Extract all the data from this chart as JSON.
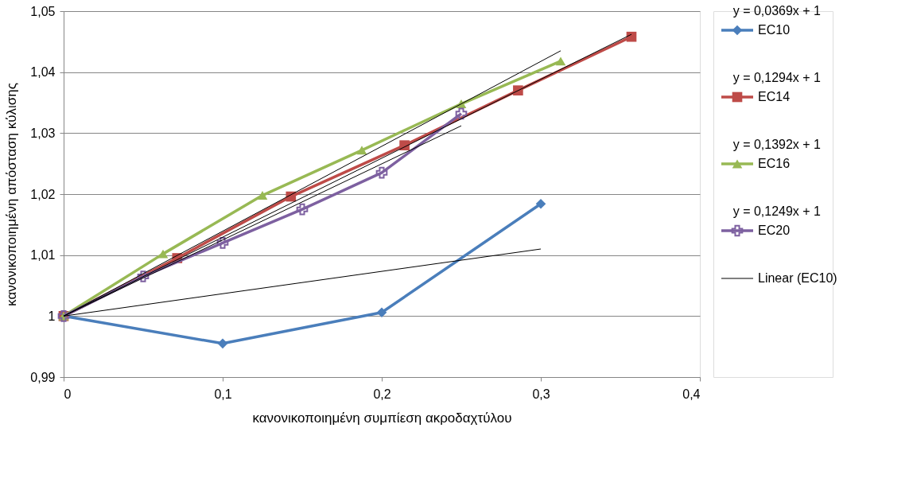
{
  "chart_data": {
    "type": "line",
    "xlabel": "κανονικοποιημένη συμπίεση ακροδαχτύλου",
    "ylabel": "κανονικοποιημένη απόσταση κύλισης",
    "xlim": [
      0,
      0.4
    ],
    "xticks": [
      0,
      {
        "value": 0.1,
        "label": "0,1"
      },
      {
        "value": 0.2,
        "label": "0,2"
      },
      {
        "value": 0.3,
        "label": "0,3"
      },
      {
        "value": 0.4,
        "label": "0,4"
      }
    ],
    "ylim": [
      0.99,
      1.05
    ],
    "yticks": [
      {
        "value": 0.99,
        "label": "0,99"
      },
      1,
      {
        "value": 1.01,
        "label": "1,01"
      },
      {
        "value": 1.02,
        "label": "1,02"
      },
      {
        "value": 1.03,
        "label": "1,03"
      },
      {
        "value": 1.04,
        "label": "1,04"
      },
      {
        "value": 1.05,
        "label": "1,05"
      }
    ],
    "grid": "y",
    "legend": "right",
    "annotations": [
      "y = 0,0369x + 1",
      "y = 0,1294x + 1",
      "y = 0,1392x + 1",
      "y = 0,1249x + 1"
    ],
    "series": [
      {
        "name": "EC10",
        "color": "#4a7ebb",
        "marker": "diamond",
        "x": [
          0,
          0.1,
          0.2,
          0.3
        ],
        "values": [
          1,
          0.9955,
          1.0006,
          1.0184
        ]
      },
      {
        "name": "EC14",
        "color": "#be4b48",
        "marker": "square",
        "x": [
          0,
          0.0714,
          0.1429,
          0.2143,
          0.2857,
          0.357
        ],
        "values": [
          1,
          1.0095,
          1.0196,
          1.028,
          1.037,
          1.0458
        ]
      },
      {
        "name": "EC16",
        "color": "#98b954",
        "marker": "triangle",
        "x": [
          0,
          0.0625,
          0.125,
          0.1875,
          0.25,
          0.3125
        ],
        "values": [
          1,
          1.0102,
          1.0198,
          1.0272,
          1.0348,
          1.0418
        ]
      },
      {
        "name": "EC20",
        "color": "#7d60a0",
        "marker": "cross",
        "x": [
          0,
          0.05,
          0.1,
          0.15,
          0.2,
          0.25
        ],
        "values": [
          1,
          1.0065,
          1.012,
          1.0175,
          1.0235,
          1.0332
        ]
      },
      {
        "name": "Linear (EC10)",
        "color": "#000000",
        "marker": "none",
        "x": [
          0,
          0.3
        ],
        "values": [
          1,
          1.011
        ]
      },
      {
        "color": "#000000",
        "marker": "none",
        "x": [
          0,
          0.357
        ],
        "values": [
          1,
          1.0462
        ]
      },
      {
        "color": "#000000",
        "marker": "none",
        "x": [
          0,
          0.3125
        ],
        "values": [
          1,
          1.0435
        ]
      },
      {
        "color": "#000000",
        "marker": "none",
        "x": [
          0,
          0.25
        ],
        "values": [
          1,
          1.0312
        ]
      }
    ]
  }
}
